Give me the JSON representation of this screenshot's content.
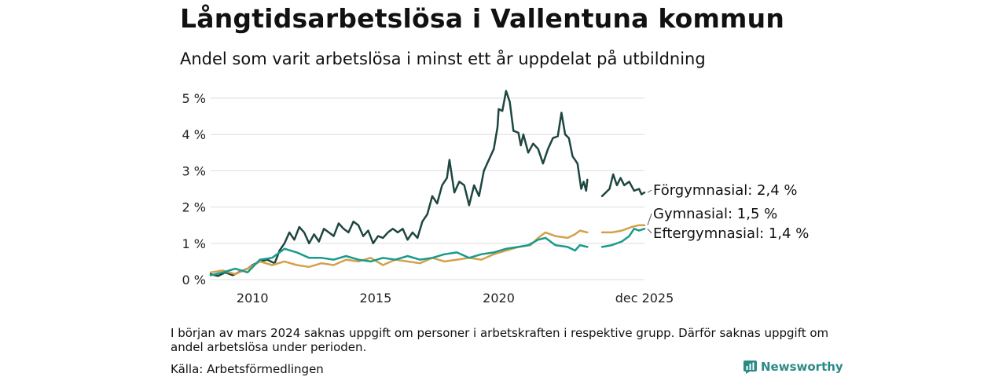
{
  "title": "Långtidsarbetslösa i Vallentuna kommun",
  "subtitle": "Andel som varit arbetslösa i minst ett år uppdelat på utbildning",
  "note": "I början av mars 2024 saknas uppgift om personer i arbetskraften i respektive grupp. Därför saknas uppgift om andel arbetslösa under perioden.",
  "source": "Källa: Arbetsförmedlingen",
  "brand": "Newsworthy",
  "colors": {
    "forgymnasial": "#1e4640",
    "gymnasial": "#d4a04c",
    "eftergymnasial": "#1a9a8c",
    "grid": "#dddddd",
    "brand": "#2a8a86"
  },
  "chart_data": {
    "type": "line",
    "title": "Långtidsarbetslösa i Vallentuna kommun",
    "xlabel": "",
    "ylabel": "",
    "xlim": [
      2008.3,
      2025.92
    ],
    "ylim": [
      0,
      5
    ],
    "y_ticks": [
      0,
      1,
      2,
      3,
      4,
      5
    ],
    "y_tick_labels": [
      "0 %",
      "1 %",
      "2 %",
      "3 %",
      "4 %",
      "5 %"
    ],
    "x_ticks": [
      2010,
      2015,
      2020,
      2025.92
    ],
    "x_tick_labels": [
      "2010",
      "2015",
      "2020",
      "dec 2025"
    ],
    "grid": true,
    "gap": [
      2023.6,
      2024.2
    ],
    "series": [
      {
        "name": "Förgymnasial",
        "end_label": "Förgymnasial: 2,4 %",
        "color_key": "forgymnasial",
        "points": [
          [
            2008.3,
            0.15
          ],
          [
            2008.6,
            0.1
          ],
          [
            2008.9,
            0.2
          ],
          [
            2009.2,
            0.12
          ],
          [
            2009.5,
            0.22
          ],
          [
            2009.8,
            0.3
          ],
          [
            2010.0,
            0.4
          ],
          [
            2010.3,
            0.5
          ],
          [
            2010.6,
            0.55
          ],
          [
            2010.9,
            0.45
          ],
          [
            2011.1,
            0.8
          ],
          [
            2011.3,
            1.0
          ],
          [
            2011.5,
            1.3
          ],
          [
            2011.7,
            1.1
          ],
          [
            2011.9,
            1.45
          ],
          [
            2012.1,
            1.3
          ],
          [
            2012.3,
            1.0
          ],
          [
            2012.5,
            1.25
          ],
          [
            2012.7,
            1.05
          ],
          [
            2012.9,
            1.4
          ],
          [
            2013.1,
            1.3
          ],
          [
            2013.3,
            1.2
          ],
          [
            2013.5,
            1.55
          ],
          [
            2013.7,
            1.4
          ],
          [
            2013.9,
            1.3
          ],
          [
            2014.1,
            1.6
          ],
          [
            2014.3,
            1.5
          ],
          [
            2014.5,
            1.2
          ],
          [
            2014.7,
            1.35
          ],
          [
            2014.9,
            1.0
          ],
          [
            2015.1,
            1.2
          ],
          [
            2015.3,
            1.15
          ],
          [
            2015.5,
            1.3
          ],
          [
            2015.7,
            1.4
          ],
          [
            2015.9,
            1.3
          ],
          [
            2016.1,
            1.4
          ],
          [
            2016.3,
            1.1
          ],
          [
            2016.5,
            1.3
          ],
          [
            2016.7,
            1.15
          ],
          [
            2016.9,
            1.6
          ],
          [
            2017.1,
            1.8
          ],
          [
            2017.3,
            2.3
          ],
          [
            2017.5,
            2.1
          ],
          [
            2017.7,
            2.6
          ],
          [
            2017.9,
            2.8
          ],
          [
            2018.0,
            3.3
          ],
          [
            2018.2,
            2.4
          ],
          [
            2018.4,
            2.7
          ],
          [
            2018.6,
            2.6
          ],
          [
            2018.8,
            2.05
          ],
          [
            2019.0,
            2.6
          ],
          [
            2019.2,
            2.3
          ],
          [
            2019.4,
            3.0
          ],
          [
            2019.6,
            3.3
          ],
          [
            2019.8,
            3.6
          ],
          [
            2019.95,
            4.2
          ],
          [
            2020.0,
            4.7
          ],
          [
            2020.15,
            4.65
          ],
          [
            2020.3,
            5.2
          ],
          [
            2020.45,
            4.9
          ],
          [
            2020.6,
            4.1
          ],
          [
            2020.8,
            4.05
          ],
          [
            2020.9,
            3.7
          ],
          [
            2021.0,
            4.0
          ],
          [
            2021.2,
            3.5
          ],
          [
            2021.4,
            3.75
          ],
          [
            2021.6,
            3.6
          ],
          [
            2021.8,
            3.2
          ],
          [
            2022.0,
            3.6
          ],
          [
            2022.2,
            3.9
          ],
          [
            2022.4,
            3.95
          ],
          [
            2022.55,
            4.6
          ],
          [
            2022.7,
            4.0
          ],
          [
            2022.85,
            3.9
          ],
          [
            2023.0,
            3.4
          ],
          [
            2023.2,
            3.2
          ],
          [
            2023.35,
            2.5
          ],
          [
            2023.45,
            2.7
          ],
          [
            2023.55,
            2.45
          ],
          [
            2023.6,
            2.75
          ],
          null,
          [
            2024.2,
            2.3
          ],
          [
            2024.35,
            2.4
          ],
          [
            2024.5,
            2.5
          ],
          [
            2024.65,
            2.9
          ],
          [
            2024.8,
            2.6
          ],
          [
            2024.95,
            2.8
          ],
          [
            2025.1,
            2.6
          ],
          [
            2025.3,
            2.7
          ],
          [
            2025.5,
            2.45
          ],
          [
            2025.7,
            2.5
          ],
          [
            2025.8,
            2.35
          ],
          [
            2025.92,
            2.4
          ]
        ]
      },
      {
        "name": "Gymnasial",
        "end_label": "Gymnasial: 1,5 %",
        "color_key": "gymnasial",
        "points": [
          [
            2008.3,
            0.2
          ],
          [
            2008.8,
            0.25
          ],
          [
            2009.3,
            0.15
          ],
          [
            2009.8,
            0.3
          ],
          [
            2010.3,
            0.5
          ],
          [
            2010.8,
            0.4
          ],
          [
            2011.3,
            0.5
          ],
          [
            2011.8,
            0.4
          ],
          [
            2012.3,
            0.35
          ],
          [
            2012.8,
            0.45
          ],
          [
            2013.3,
            0.4
          ],
          [
            2013.8,
            0.55
          ],
          [
            2014.3,
            0.5
          ],
          [
            2014.8,
            0.6
          ],
          [
            2015.3,
            0.4
          ],
          [
            2015.8,
            0.55
          ],
          [
            2016.3,
            0.5
          ],
          [
            2016.8,
            0.45
          ],
          [
            2017.3,
            0.6
          ],
          [
            2017.8,
            0.5
          ],
          [
            2018.3,
            0.55
          ],
          [
            2018.8,
            0.6
          ],
          [
            2019.3,
            0.55
          ],
          [
            2019.8,
            0.7
          ],
          [
            2020.3,
            0.8
          ],
          [
            2020.8,
            0.9
          ],
          [
            2021.3,
            0.95
          ],
          [
            2021.6,
            1.15
          ],
          [
            2021.9,
            1.3
          ],
          [
            2022.3,
            1.2
          ],
          [
            2022.8,
            1.15
          ],
          [
            2023.1,
            1.25
          ],
          [
            2023.3,
            1.35
          ],
          [
            2023.6,
            1.3
          ],
          null,
          [
            2024.2,
            1.3
          ],
          [
            2024.6,
            1.3
          ],
          [
            2025.0,
            1.35
          ],
          [
            2025.4,
            1.45
          ],
          [
            2025.7,
            1.5
          ],
          [
            2025.92,
            1.5
          ]
        ]
      },
      {
        "name": "Eftergymnasial",
        "end_label": "Eftergymnasial: 1,4 %",
        "color_key": "eftergymnasial",
        "points": [
          [
            2008.3,
            0.12
          ],
          [
            2008.8,
            0.2
          ],
          [
            2009.3,
            0.3
          ],
          [
            2009.8,
            0.2
          ],
          [
            2010.3,
            0.55
          ],
          [
            2010.8,
            0.6
          ],
          [
            2011.3,
            0.85
          ],
          [
            2011.8,
            0.75
          ],
          [
            2012.3,
            0.6
          ],
          [
            2012.8,
            0.6
          ],
          [
            2013.3,
            0.55
          ],
          [
            2013.8,
            0.65
          ],
          [
            2014.3,
            0.55
          ],
          [
            2014.8,
            0.5
          ],
          [
            2015.3,
            0.6
          ],
          [
            2015.8,
            0.55
          ],
          [
            2016.3,
            0.65
          ],
          [
            2016.8,
            0.55
          ],
          [
            2017.3,
            0.6
          ],
          [
            2017.8,
            0.7
          ],
          [
            2018.3,
            0.75
          ],
          [
            2018.8,
            0.6
          ],
          [
            2019.3,
            0.7
          ],
          [
            2019.8,
            0.75
          ],
          [
            2020.3,
            0.85
          ],
          [
            2020.8,
            0.9
          ],
          [
            2021.2,
            0.95
          ],
          [
            2021.6,
            1.1
          ],
          [
            2021.9,
            1.15
          ],
          [
            2022.3,
            0.95
          ],
          [
            2022.8,
            0.9
          ],
          [
            2023.1,
            0.8
          ],
          [
            2023.3,
            0.95
          ],
          [
            2023.6,
            0.9
          ],
          null,
          [
            2024.2,
            0.9
          ],
          [
            2024.6,
            0.95
          ],
          [
            2025.0,
            1.05
          ],
          [
            2025.3,
            1.2
          ],
          [
            2025.5,
            1.4
          ],
          [
            2025.7,
            1.35
          ],
          [
            2025.92,
            1.4
          ]
        ]
      }
    ]
  }
}
